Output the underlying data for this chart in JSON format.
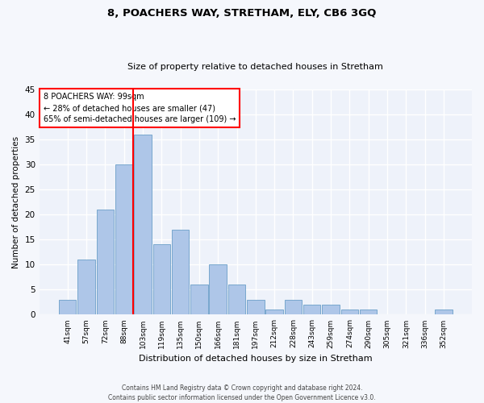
{
  "title1": "8, POACHERS WAY, STRETHAM, ELY, CB6 3GQ",
  "title2": "Size of property relative to detached houses in Stretham",
  "xlabel": "Distribution of detached houses by size in Stretham",
  "ylabel": "Number of detached properties",
  "categories": [
    "41sqm",
    "57sqm",
    "72sqm",
    "88sqm",
    "103sqm",
    "119sqm",
    "135sqm",
    "150sqm",
    "166sqm",
    "181sqm",
    "197sqm",
    "212sqm",
    "228sqm",
    "243sqm",
    "259sqm",
    "274sqm",
    "290sqm",
    "305sqm",
    "321sqm",
    "336sqm",
    "352sqm"
  ],
  "values": [
    3,
    11,
    21,
    30,
    36,
    14,
    17,
    6,
    10,
    6,
    3,
    1,
    3,
    2,
    2,
    1,
    1,
    0,
    0,
    0,
    1
  ],
  "bar_color": "#aec6e8",
  "bar_edgecolor": "#6a9fc8",
  "red_line_index": 4,
  "annotation_lines": [
    "8 POACHERS WAY: 99sqm",
    "← 28% of detached houses are smaller (47)",
    "65% of semi-detached houses are larger (109) →"
  ],
  "ylim": [
    0,
    45
  ],
  "yticks": [
    0,
    5,
    10,
    15,
    20,
    25,
    30,
    35,
    40,
    45
  ],
  "bg_color": "#eef2fa",
  "grid_color": "#ffffff",
  "fig_bg_color": "#f5f7fc",
  "footer1": "Contains HM Land Registry data © Crown copyright and database right 2024.",
  "footer2": "Contains public sector information licensed under the Open Government Licence v3.0."
}
